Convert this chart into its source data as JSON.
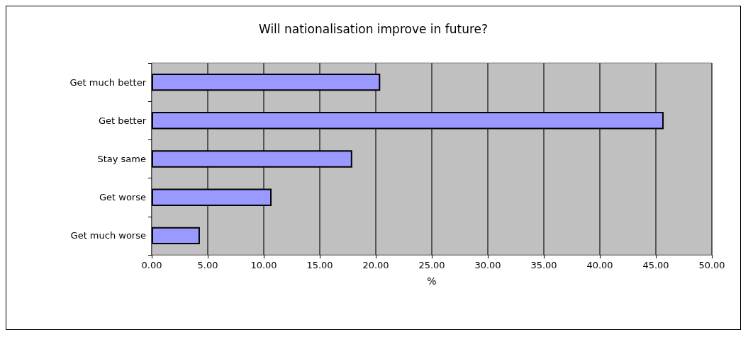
{
  "chart_data": {
    "type": "bar",
    "orientation": "horizontal",
    "title": "Will nationalisation improve in future?",
    "xlabel": "%",
    "categories": [
      "Get much better",
      "Get better",
      "Stay same",
      "Get worse",
      "Get much worse"
    ],
    "values": [
      20.4,
      45.7,
      17.9,
      10.7,
      4.3
    ],
    "color": "#9999ff",
    "xlim": [
      0,
      50
    ],
    "xticks": [
      {
        "value": 0,
        "label": "0.00"
      },
      {
        "value": 5,
        "label": "5.00"
      },
      {
        "value": 10,
        "label": "10.00"
      },
      {
        "value": 15,
        "label": "15.00"
      },
      {
        "value": 20,
        "label": "20.00"
      },
      {
        "value": 25,
        "label": "25.00"
      },
      {
        "value": 30,
        "label": "30.00"
      },
      {
        "value": 35,
        "label": "35.00"
      },
      {
        "value": 40,
        "label": "40.00"
      },
      {
        "value": 45,
        "label": "45.00"
      },
      {
        "value": 50,
        "label": "50.00"
      }
    ],
    "grid": "x"
  }
}
